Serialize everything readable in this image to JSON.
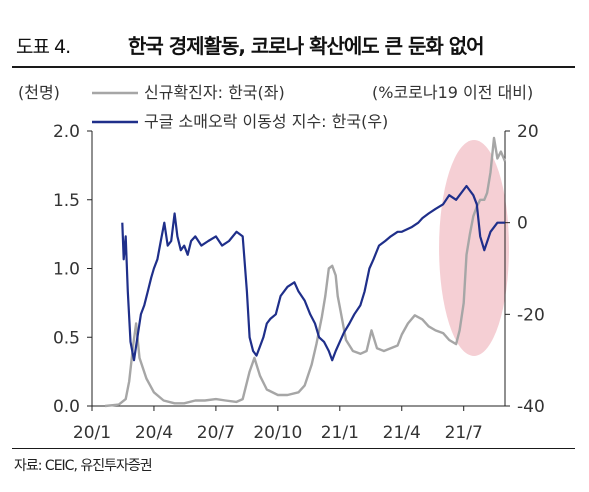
{
  "figure": {
    "label": "도표 4.",
    "title": "한국 경제활동, 코로나 확산에도 큰 둔화 없어",
    "source": "자료: CEIC, 유진투자증권"
  },
  "chart_data": {
    "type": "line",
    "title": "한국 경제활동, 코로나 확산에도 큰 둔화 없어",
    "left_axis_unit": "(천명)",
    "right_axis_unit": "(%코로나19 이전 대비)",
    "x_tick_labels": [
      "20/1",
      "20/4",
      "20/7",
      "20/10",
      "21/1",
      "21/4",
      "21/7"
    ],
    "left_ylim": [
      0.0,
      2.0
    ],
    "left_ticks": [
      "0.0",
      "0.5",
      "1.0",
      "1.5",
      "2.0"
    ],
    "right_ylim": [
      -40,
      20
    ],
    "right_ticks": [
      "-40",
      "-20",
      "0",
      "20"
    ],
    "grid": false,
    "legend_position": "top-left",
    "highlight": {
      "shape": "ellipse",
      "x_range": [
        "21/6",
        "21/9"
      ],
      "color": "#f3c7cc"
    },
    "series": [
      {
        "name": "신규확진자: 한국(좌)",
        "axis": "left",
        "color": "#a6a6a6",
        "x": [
          "20/1/20",
          "20/2/10",
          "20/2/20",
          "20/2/25",
          "20/3/1",
          "20/3/5",
          "20/3/10",
          "20/3/20",
          "20/4/1",
          "20/4/15",
          "20/5/1",
          "20/5/15",
          "20/6/1",
          "20/6/15",
          "20/7/1",
          "20/7/15",
          "20/8/1",
          "20/8/10",
          "20/8/20",
          "20/8/27",
          "20/9/5",
          "20/9/15",
          "20/10/1",
          "20/10/15",
          "20/11/1",
          "20/11/10",
          "20/11/20",
          "20/11/27",
          "20/12/5",
          "20/12/10",
          "20/12/15",
          "20/12/20",
          "20/12/25",
          "20/12/28",
          "21/1/1",
          "21/1/10",
          "21/1/20",
          "21/2/1",
          "21/2/10",
          "21/2/17",
          "21/2/25",
          "21/3/5",
          "21/3/15",
          "21/3/25",
          "21/4/1",
          "21/4/10",
          "21/4/20",
          "21/5/1",
          "21/5/10",
          "21/5/20",
          "21/6/1",
          "21/6/10",
          "21/6/20",
          "21/6/25",
          "21/7/1",
          "21/7/5",
          "21/7/10",
          "21/7/15",
          "21/7/20",
          "21/7/25",
          "21/8/1",
          "21/8/5",
          "21/8/10",
          "21/8/15",
          "21/8/20",
          "21/8/25",
          "21/8/31"
        ],
        "values": [
          0.0,
          0.01,
          0.05,
          0.18,
          0.45,
          0.6,
          0.35,
          0.2,
          0.1,
          0.04,
          0.02,
          0.02,
          0.04,
          0.04,
          0.05,
          0.04,
          0.03,
          0.05,
          0.25,
          0.35,
          0.22,
          0.12,
          0.08,
          0.08,
          0.1,
          0.15,
          0.3,
          0.45,
          0.65,
          0.8,
          1.0,
          1.02,
          0.95,
          0.8,
          0.72,
          0.48,
          0.4,
          0.38,
          0.4,
          0.55,
          0.42,
          0.4,
          0.42,
          0.44,
          0.52,
          0.6,
          0.66,
          0.63,
          0.58,
          0.55,
          0.53,
          0.48,
          0.45,
          0.55,
          0.75,
          1.1,
          1.25,
          1.38,
          1.45,
          1.5,
          1.5,
          1.55,
          1.7,
          1.95,
          1.8,
          1.85,
          1.78
        ]
      },
      {
        "name": "구글 소매오락 이동성 지수: 한국(우)",
        "axis": "right",
        "color": "#1f2f8a",
        "x": [
          "20/2/15",
          "20/2/17",
          "20/2/20",
          "20/2/23",
          "20/2/27",
          "20/3/2",
          "20/3/7",
          "20/3/12",
          "20/3/17",
          "20/3/22",
          "20/3/27",
          "20/4/1",
          "20/4/6",
          "20/4/11",
          "20/4/16",
          "20/4/21",
          "20/4/26",
          "20/5/1",
          "20/5/5",
          "20/5/10",
          "20/5/15",
          "20/5/20",
          "20/5/25",
          "20/6/1",
          "20/6/10",
          "20/6/20",
          "20/7/1",
          "20/7/10",
          "20/7/20",
          "20/8/1",
          "20/8/10",
          "20/8/16",
          "20/8/20",
          "20/8/25",
          "20/8/30",
          "20/9/5",
          "20/9/10",
          "20/9/15",
          "20/9/20",
          "20/9/28",
          "20/10/5",
          "20/10/15",
          "20/10/25",
          "20/11/1",
          "20/11/10",
          "20/11/18",
          "20/11/25",
          "20/12/1",
          "20/12/8",
          "20/12/15",
          "20/12/20",
          "20/12/25",
          "20/12/31",
          "21/1/7",
          "21/1/15",
          "21/1/22",
          "21/1/31",
          "21/2/7",
          "21/2/14",
          "21/2/20",
          "21/2/28",
          "21/3/7",
          "21/3/15",
          "21/3/25",
          "21/4/1",
          "21/4/15",
          "21/4/25",
          "21/5/1",
          "21/5/10",
          "21/5/20",
          "21/6/1",
          "21/6/10",
          "21/6/20",
          "21/6/30",
          "21/7/5",
          "21/7/10",
          "21/7/15",
          "21/7/20",
          "21/7/25",
          "21/8/1",
          "21/8/10",
          "21/8/20",
          "21/8/25",
          "21/8/31"
        ],
        "values": [
          0,
          -8,
          -3,
          -15,
          -26,
          -30,
          -25,
          -20,
          -18,
          -15,
          -12,
          -10,
          -8,
          -4,
          0,
          -5,
          -4,
          2,
          -3,
          -6,
          -5,
          -7,
          -4,
          -3,
          -5,
          -4,
          -3,
          -5,
          -4,
          -2,
          -3,
          -15,
          -25,
          -28,
          -29,
          -27,
          -25,
          -22,
          -21,
          -20,
          -16,
          -14,
          -13,
          -15,
          -17,
          -20,
          -22,
          -25,
          -26,
          -28,
          -30,
          -28,
          -26,
          -24,
          -22,
          -20,
          -18,
          -15,
          -10,
          -8,
          -5,
          -4,
          -3,
          -2,
          -2,
          -1,
          0,
          1,
          2,
          3,
          4,
          6,
          5,
          7,
          8,
          7,
          6,
          4,
          -3,
          -6,
          -2,
          0,
          0,
          0
        ]
      }
    ]
  }
}
